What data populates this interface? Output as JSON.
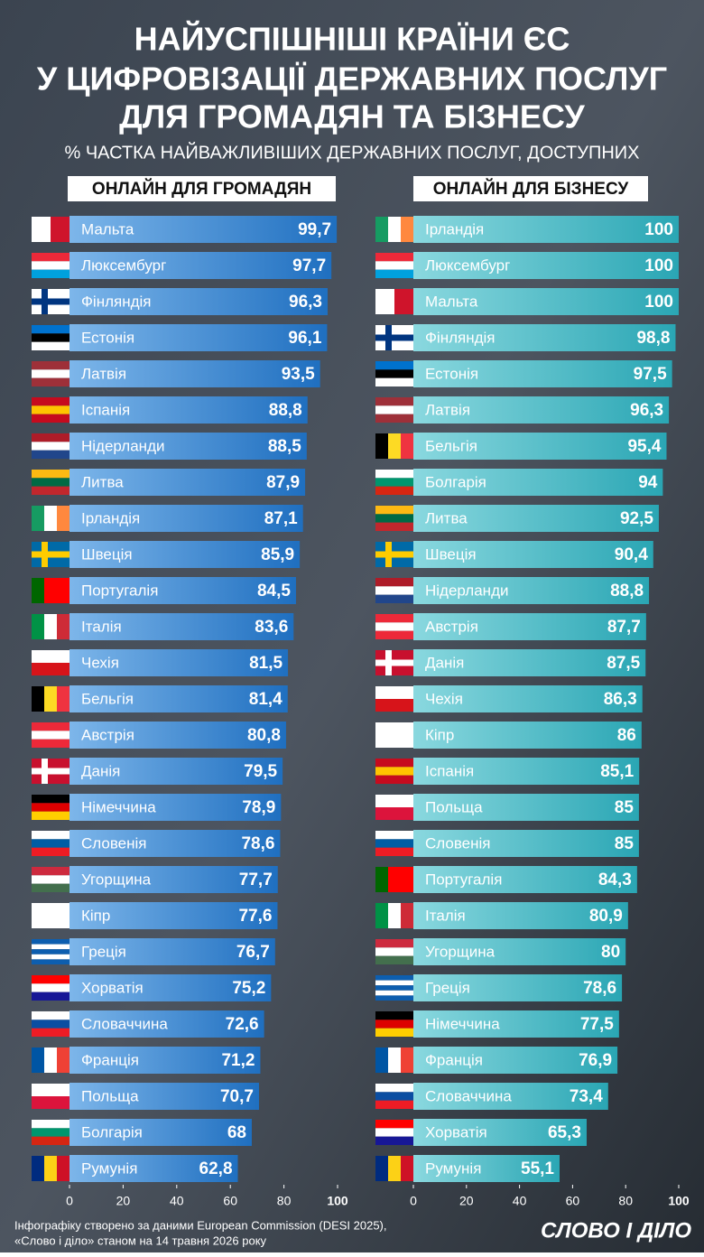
{
  "title_lines": [
    "НАЙУСПІШНІШІ КРАЇНИ ЄС",
    "У ЦИФРОВІЗАЦІЇ ДЕРЖАВНИХ ПОСЛУГ",
    "ДЛЯ ГРОМАДЯН ТА БІЗНЕСУ"
  ],
  "subtitle": "% ЧАСТКА НАЙВАЖЛИВІШИХ ДЕРЖАВНИХ ПОСЛУГ, ДОСТУПНИХ",
  "source_lines": [
    "Інфографіку створено за даними European Commission (DESI 2025),",
    "«Слово і діло» станом на 14 травня 2026 року"
  ],
  "logo": "СЛОВО І ДІЛО",
  "chart_data": [
    {
      "type": "bar",
      "orientation": "horizontal",
      "title": "ОНЛАЙН ДЛЯ ГРОМАДЯН",
      "colors": [
        "#1f6fc0",
        "#7db6ea"
      ],
      "categories": [
        "Мальта",
        "Люксембург",
        "Фінляндія",
        "Естонія",
        "Латвія",
        "Іспанія",
        "Нідерланди",
        "Литва",
        "Ірландія",
        "Швеція",
        "Португалія",
        "Італія",
        "Чехія",
        "Бельгія",
        "Австрія",
        "Данія",
        "Німеччина",
        "Словенія",
        "Угорщина",
        "Кіпр",
        "Греція",
        "Хорватія",
        "Словаччина",
        "Франція",
        "Польща",
        "Болгарія",
        "Румунія"
      ],
      "values": [
        99.7,
        97.7,
        96.3,
        96.1,
        93.5,
        88.8,
        88.5,
        87.9,
        87.1,
        85.9,
        84.5,
        83.6,
        81.5,
        81.4,
        80.8,
        79.5,
        78.9,
        78.6,
        77.7,
        77.6,
        76.7,
        75.2,
        72.6,
        71.2,
        70.7,
        68,
        62.8
      ],
      "value_labels": [
        "99,7",
        "97,7",
        "96,3",
        "96,1",
        "93,5",
        "88,8",
        "88,5",
        "87,9",
        "87,1",
        "85,9",
        "84,5",
        "83,6",
        "81,5",
        "81,4",
        "80,8",
        "79,5",
        "78,9",
        "78,6",
        "77,7",
        "77,6",
        "76,7",
        "75,2",
        "72,6",
        "71,2",
        "70,7",
        "68",
        "62,8"
      ],
      "flags": [
        "v:#ffffff,#cf142b",
        "h:#ed2939,#ffffff,#00a1de",
        "x:#ffffff,#003580",
        "h:#0072ce,#000000,#ffffff",
        "h:#9e3039,#ffffff,#9e3039",
        "h:#c60b1e,#ffc400,#c60b1e",
        "h:#ae1c28,#ffffff,#21468b",
        "h:#fdb913,#006a44,#c1272d",
        "v:#169b62,#ffffff,#ff883e",
        "x:#006aa7,#fecc00",
        "v:#006600,#ff0000,#ff0000",
        "v:#009246,#ffffff,#ce2b37",
        "h:#ffffff,#d7141a",
        "v:#000000,#fdda24,#ef3340",
        "h:#ed2939,#ffffff,#ed2939",
        "x:#c8102e,#ffffff",
        "h:#000000,#dd0000,#ffce00",
        "h:#ffffff,#005da4,#ed1c24",
        "h:#cd2a3e,#ffffff,#436f4d",
        "h:#ffffff",
        "h:#0d5eaf,#ffffff,#0d5eaf,#ffffff,#0d5eaf",
        "h:#ff0000,#ffffff,#171796",
        "h:#ffffff,#0b4ea2,#ee1c25",
        "v:#0055a4,#ffffff,#ef4135",
        "h:#ffffff,#dc143c",
        "h:#ffffff,#00966e,#d62612",
        "v:#002b7f,#fcd116,#ce1126"
      ],
      "xlim": [
        0,
        100
      ],
      "xticks": [
        0,
        20,
        40,
        60,
        80,
        100
      ]
    },
    {
      "type": "bar",
      "orientation": "horizontal",
      "title": "ОНЛАЙН ДЛЯ БІЗНЕСУ",
      "colors": [
        "#2aa6b4",
        "#8ad8df"
      ],
      "categories": [
        "Ірландія",
        "Люксембург",
        "Мальта",
        "Фінляндія",
        "Естонія",
        "Латвія",
        "Бельгія",
        "Болгарія",
        "Литва",
        "Швеція",
        "Нідерланди",
        "Австрія",
        "Данія",
        "Чехія",
        "Кіпр",
        "Іспанія",
        "Польща",
        "Словенія",
        "Португалія",
        "Італія",
        "Угорщина",
        "Греція",
        "Німеччина",
        "Франція",
        "Словаччина",
        "Хорватія",
        "Румунія"
      ],
      "values": [
        100,
        100,
        100,
        98.8,
        97.5,
        96.3,
        95.4,
        94,
        92.5,
        90.4,
        88.8,
        87.7,
        87.5,
        86.3,
        86,
        85.1,
        85,
        85,
        84.3,
        80.9,
        80,
        78.6,
        77.5,
        76.9,
        73.4,
        65.3,
        55.1
      ],
      "value_labels": [
        "100",
        "100",
        "100",
        "98,8",
        "97,5",
        "96,3",
        "95,4",
        "94",
        "92,5",
        "90,4",
        "88,8",
        "87,7",
        "87,5",
        "86,3",
        "86",
        "85,1",
        "85",
        "85",
        "84,3",
        "80,9",
        "80",
        "78,6",
        "77,5",
        "76,9",
        "73,4",
        "65,3",
        "55,1"
      ],
      "flags": [
        "v:#169b62,#ffffff,#ff883e",
        "h:#ed2939,#ffffff,#00a1de",
        "v:#ffffff,#cf142b",
        "x:#ffffff,#003580",
        "h:#0072ce,#000000,#ffffff",
        "h:#9e3039,#ffffff,#9e3039",
        "v:#000000,#fdda24,#ef3340",
        "h:#ffffff,#00966e,#d62612",
        "h:#fdb913,#006a44,#c1272d",
        "x:#006aa7,#fecc00",
        "h:#ae1c28,#ffffff,#21468b",
        "h:#ed2939,#ffffff,#ed2939",
        "x:#c8102e,#ffffff",
        "h:#ffffff,#d7141a",
        "h:#ffffff",
        "h:#c60b1e,#ffc400,#c60b1e",
        "h:#ffffff,#dc143c",
        "h:#ffffff,#005da4,#ed1c24",
        "v:#006600,#ff0000,#ff0000",
        "v:#009246,#ffffff,#ce2b37",
        "h:#cd2a3e,#ffffff,#436f4d",
        "h:#0d5eaf,#ffffff,#0d5eaf,#ffffff,#0d5eaf",
        "h:#000000,#dd0000,#ffce00",
        "v:#0055a4,#ffffff,#ef4135",
        "h:#ffffff,#0b4ea2,#ee1c25",
        "h:#ff0000,#ffffff,#171796",
        "v:#002b7f,#fcd116,#ce1126"
      ],
      "xlim": [
        0,
        100
      ],
      "xticks": [
        0,
        20,
        40,
        60,
        80,
        100
      ]
    }
  ]
}
